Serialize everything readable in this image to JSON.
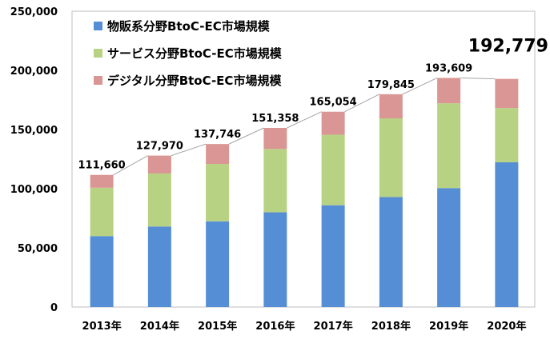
{
  "chart_data": {
    "type": "bar",
    "stacked": true,
    "categories": [
      "2013年",
      "2014年",
      "2015年",
      "2016年",
      "2017年",
      "2018年",
      "2019年",
      "2020年"
    ],
    "series": [
      {
        "name": "物販系分野BtoC-EC市場規模",
        "color": "#558ED5",
        "values": [
          59931,
          68043,
          72398,
          80043,
          86008,
          92992,
          100515,
          122333
        ]
      },
      {
        "name": "サービス分野BtoC-EC市場規模",
        "color": "#B7D282",
        "values": [
          40883,
          44816,
          48524,
          53532,
          59568,
          66471,
          71672,
          45832
        ]
      },
      {
        "name": "デジタル分野BtoC-EC市場規模",
        "color": "#D99694",
        "values": [
          10846,
          15111,
          16824,
          17783,
          19478,
          20382,
          21422,
          24614
        ]
      }
    ],
    "totals": [
      "111,660",
      "127,970",
      "137,746",
      "151,358",
      "165,054",
      "179,845",
      "193,609",
      "192,779"
    ],
    "ylim": [
      0,
      250000
    ],
    "yticks": [
      0,
      50000,
      100000,
      150000,
      200000,
      250000
    ],
    "ytick_labels": [
      "0",
      "50,000",
      "100,000",
      "150,000",
      "200,000",
      "250,000"
    ],
    "legend_position": "top-left",
    "grid": false,
    "trend_line": true,
    "title": "",
    "xlabel": "",
    "ylabel": ""
  }
}
